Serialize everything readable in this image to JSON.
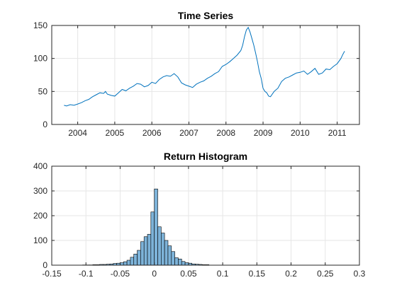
{
  "chart_data": [
    {
      "type": "line",
      "title": "Time Series",
      "xlabel": "",
      "ylabel": "",
      "xlim": [
        2003.3,
        2011.6
      ],
      "ylim": [
        0,
        150
      ],
      "xticks": [
        2004,
        2005,
        2006,
        2007,
        2008,
        2009,
        2010,
        2011
      ],
      "xtick_labels": [
        "2004",
        "2005",
        "2006",
        "2007",
        "2008",
        "2009",
        "2010",
        "2011"
      ],
      "yticks": [
        0,
        50,
        100,
        150
      ],
      "ytick_labels": [
        "0",
        "50",
        "100",
        "150"
      ],
      "grid": true,
      "color": "#0072BD",
      "series": [
        {
          "x": [
            2003.63,
            2003.7,
            2003.8,
            2003.9,
            2004.0,
            2004.1,
            2004.2,
            2004.3,
            2004.4,
            2004.5,
            2004.6,
            2004.7,
            2004.75,
            2004.8,
            2004.9,
            2005.0,
            2005.1,
            2005.2,
            2005.3,
            2005.4,
            2005.5,
            2005.6,
            2005.7,
            2005.8,
            2005.9,
            2006.0,
            2006.1,
            2006.2,
            2006.3,
            2006.4,
            2006.5,
            2006.6,
            2006.7,
            2006.8,
            2006.9,
            2007.0,
            2007.1,
            2007.2,
            2007.3,
            2007.4,
            2007.5,
            2007.6,
            2007.7,
            2007.8,
            2007.9,
            2008.0,
            2008.1,
            2008.2,
            2008.3,
            2008.4,
            2008.45,
            2008.5,
            2008.55,
            2008.6,
            2008.65,
            2008.7,
            2008.75,
            2008.8,
            2008.85,
            2008.9,
            2008.95,
            2009.0,
            2009.05,
            2009.1,
            2009.15,
            2009.2,
            2009.3,
            2009.4,
            2009.5,
            2009.6,
            2009.7,
            2009.8,
            2009.9,
            2010.0,
            2010.1,
            2010.2,
            2010.3,
            2010.4,
            2010.5,
            2010.6,
            2010.7,
            2010.8,
            2010.9,
            2011.0,
            2011.1,
            2011.15,
            2011.2
          ],
          "y": [
            29,
            28,
            30,
            29,
            31,
            33,
            36,
            38,
            42,
            45,
            48,
            47,
            50,
            46,
            44,
            43,
            48,
            53,
            51,
            55,
            58,
            62,
            61,
            57,
            59,
            64,
            62,
            68,
            72,
            74,
            73,
            77,
            72,
            63,
            60,
            58,
            56,
            61,
            64,
            66,
            70,
            73,
            77,
            80,
            88,
            91,
            95,
            100,
            105,
            112,
            120,
            133,
            143,
            147,
            140,
            130,
            120,
            108,
            95,
            80,
            70,
            55,
            50,
            48,
            43,
            42,
            50,
            55,
            65,
            70,
            72,
            75,
            78,
            79,
            81,
            76,
            80,
            85,
            76,
            78,
            84,
            83,
            88,
            92,
            100,
            106,
            111
          ]
        }
      ]
    },
    {
      "type": "bar",
      "title": "Return Histogram",
      "xlabel": "",
      "ylabel": "",
      "xlim": [
        -0.15,
        0.3
      ],
      "ylim": [
        0,
        400
      ],
      "xticks": [
        -0.15,
        -0.1,
        -0.05,
        0,
        0.05,
        0.1,
        0.15,
        0.2,
        0.25,
        0.3
      ],
      "xtick_labels": [
        "-0.15",
        "-0.1",
        "-0.05",
        "0",
        "0.05",
        "0.1",
        "0.15",
        "0.2",
        "0.25",
        "0.3"
      ],
      "yticks": [
        0,
        100,
        200,
        300,
        400
      ],
      "ytick_labels": [
        "0",
        "100",
        "200",
        "300",
        "400"
      ],
      "grid": true,
      "bar_color": "#7DB3D9",
      "edge_color": "#000000",
      "bin_width": 0.005,
      "bin_centers": [
        -0.1025,
        -0.0975,
        -0.0925,
        -0.0875,
        -0.0825,
        -0.0775,
        -0.0725,
        -0.0675,
        -0.0625,
        -0.0575,
        -0.0525,
        -0.0475,
        -0.0425,
        -0.0375,
        -0.0325,
        -0.0275,
        -0.0225,
        -0.0175,
        -0.0125,
        -0.0075,
        -0.0025,
        0.0025,
        0.0075,
        0.0125,
        0.0175,
        0.0225,
        0.0275,
        0.0325,
        0.0375,
        0.0425,
        0.0475,
        0.0525,
        0.0575,
        0.0625,
        0.0675,
        0.0725,
        0.0775
      ],
      "values": [
        1,
        1,
        1,
        2,
        2,
        3,
        3,
        4,
        5,
        7,
        8,
        10,
        14,
        20,
        32,
        45,
        60,
        95,
        115,
        125,
        215,
        308,
        155,
        130,
        100,
        78,
        55,
        30,
        25,
        15,
        10,
        8,
        5,
        4,
        3,
        2,
        2
      ]
    }
  ]
}
